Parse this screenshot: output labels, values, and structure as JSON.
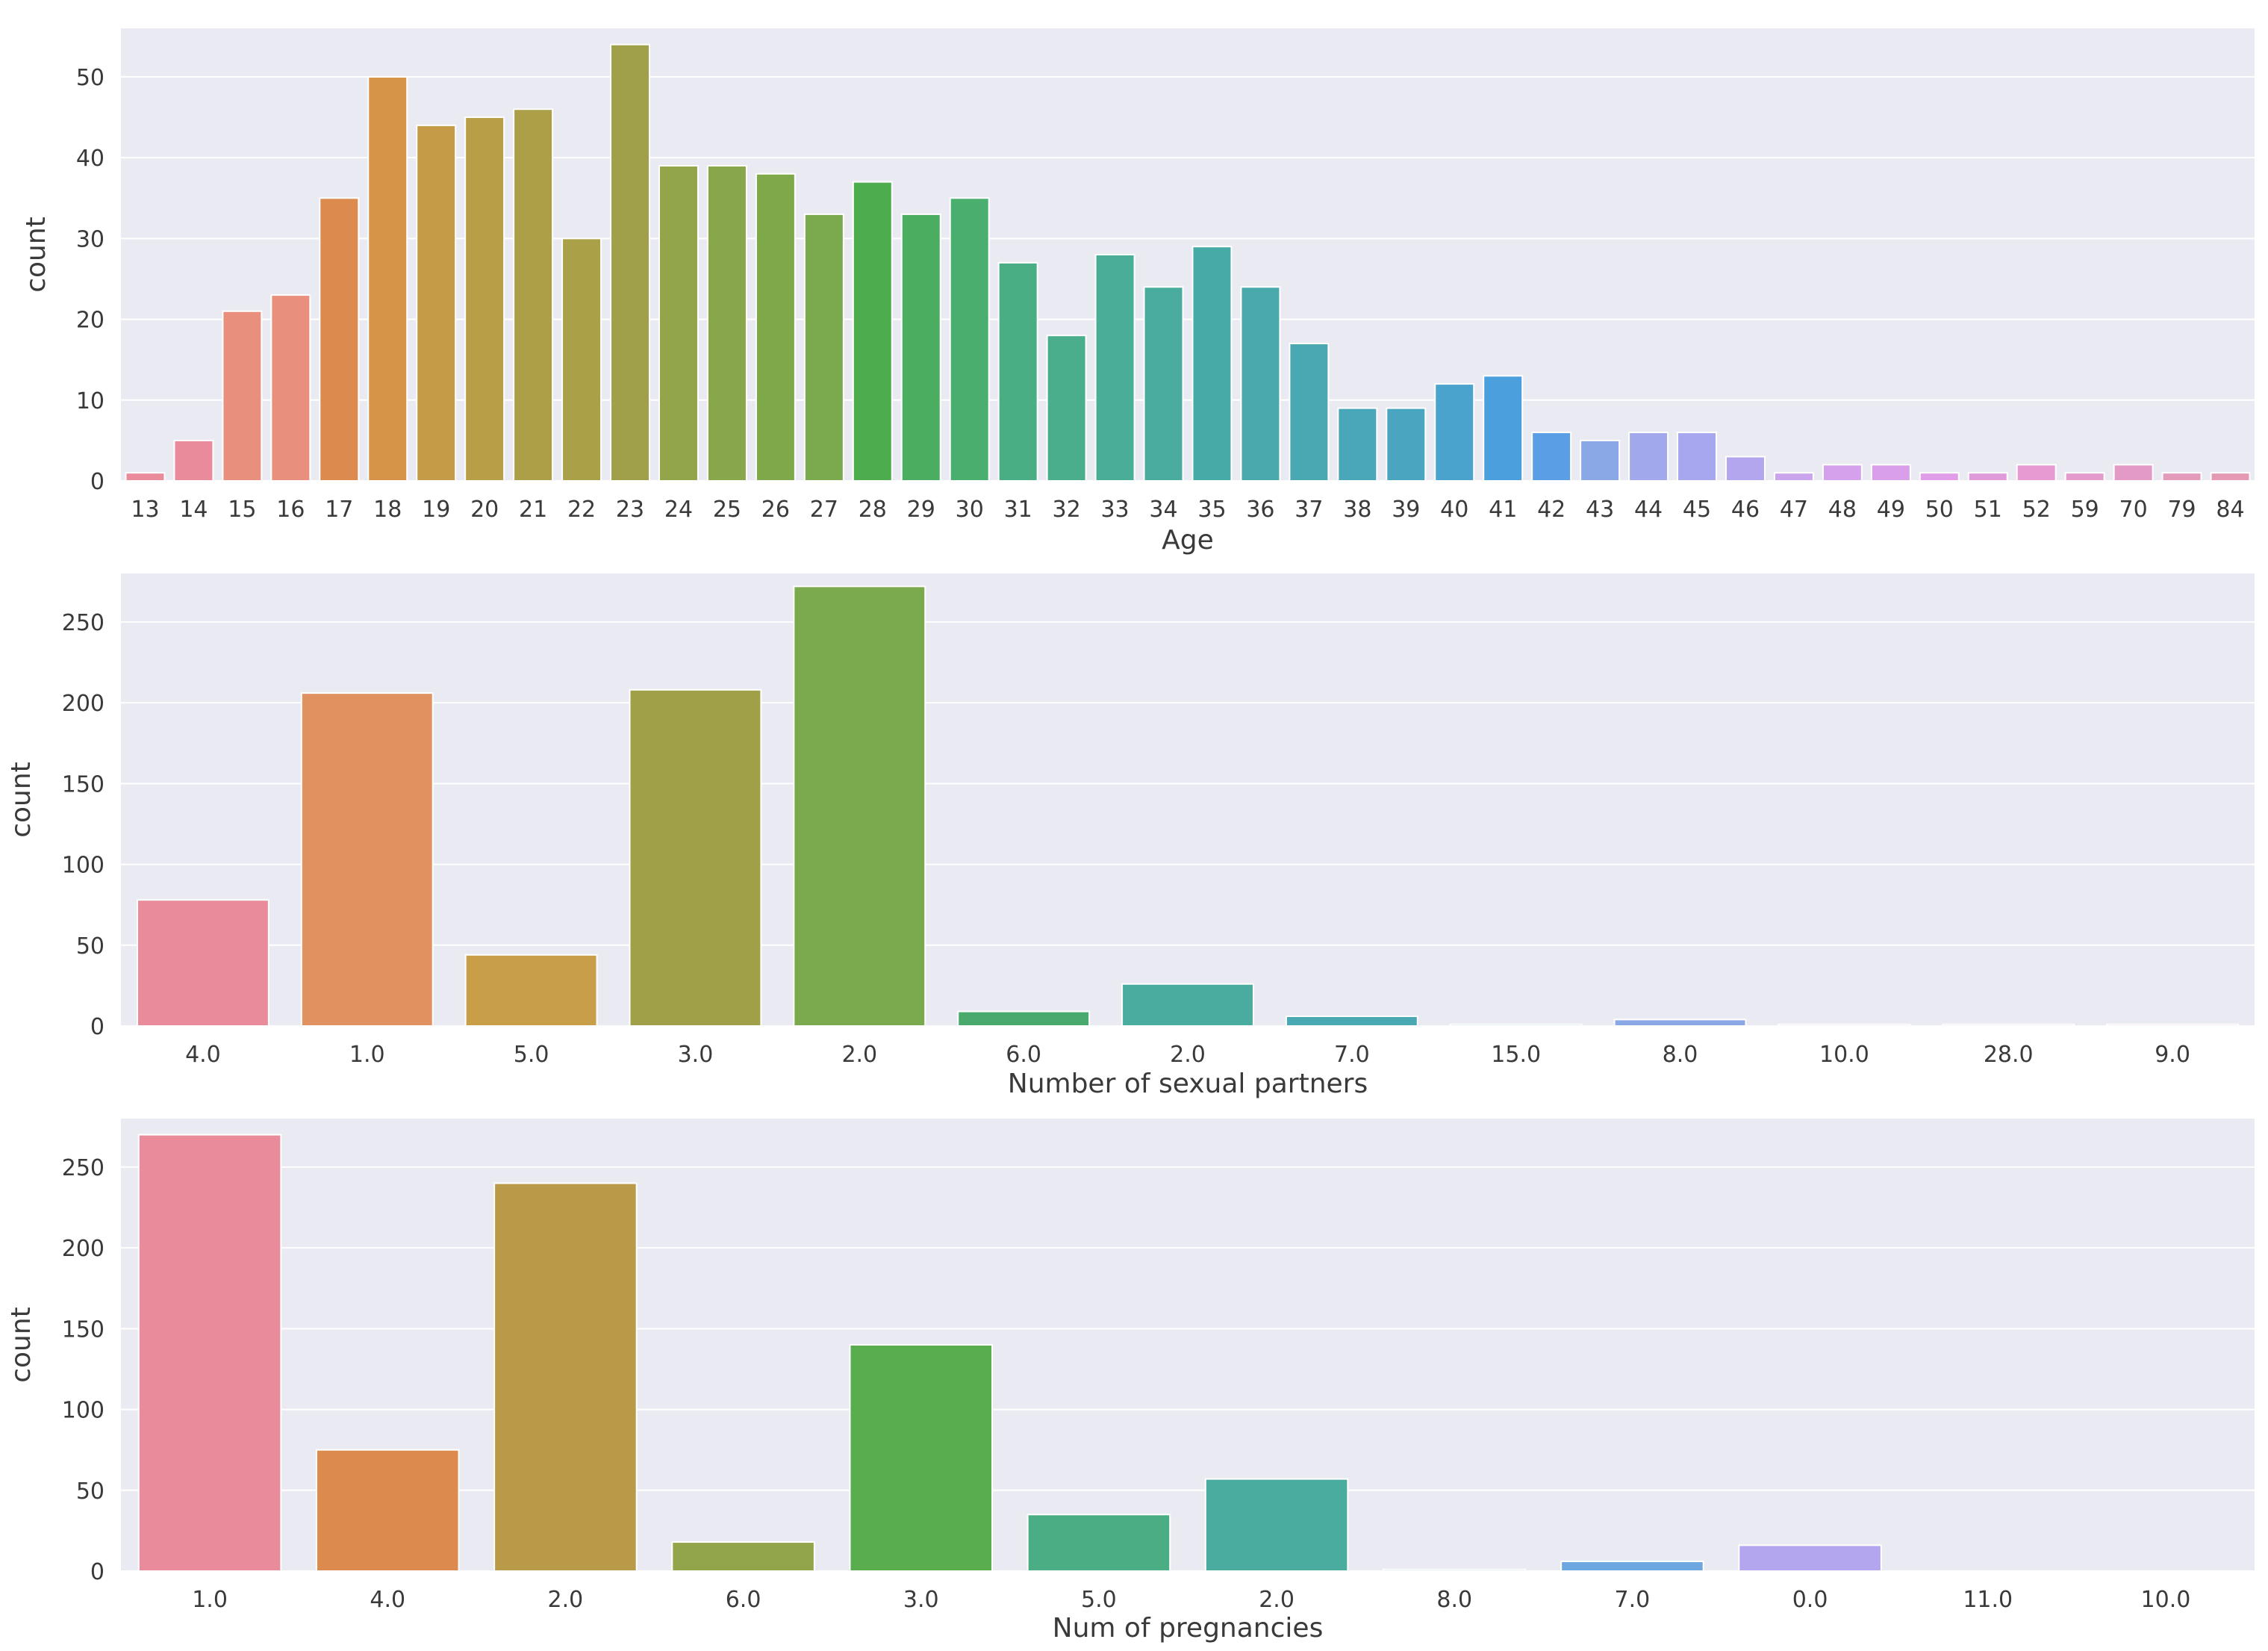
{
  "chart_data": [
    {
      "type": "bar",
      "xlabel": "Age",
      "ylabel": "count",
      "ylim": [
        0,
        56
      ],
      "yticks": [
        0,
        10,
        20,
        30,
        40,
        50
      ],
      "grid": true,
      "categories": [
        "13",
        "14",
        "15",
        "16",
        "17",
        "18",
        "19",
        "20",
        "21",
        "22",
        "23",
        "24",
        "25",
        "26",
        "27",
        "28",
        "29",
        "30",
        "31",
        "32",
        "33",
        "34",
        "35",
        "36",
        "37",
        "38",
        "39",
        "40",
        "41",
        "42",
        "43",
        "44",
        "45",
        "46",
        "47",
        "48",
        "49",
        "50",
        "51",
        "52",
        "59",
        "70",
        "79",
        "84"
      ],
      "values": [
        1,
        5,
        21,
        23,
        35,
        50,
        44,
        45,
        46,
        30,
        54,
        39,
        39,
        38,
        33,
        37,
        33,
        35,
        27,
        18,
        28,
        24,
        29,
        24,
        17,
        9,
        9,
        12,
        13,
        6,
        5,
        6,
        6,
        3,
        1,
        2,
        2,
        1,
        1,
        2,
        1,
        2,
        1,
        1
      ],
      "colors": [
        "#e98b9a",
        "#e98b9a",
        "#e8907d",
        "#e8907d",
        "#dd8a4f",
        "#d59448",
        "#c69b48",
        "#b99e48",
        "#ac9f48",
        "#a9a048",
        "#a0a04a",
        "#93a54a",
        "#88a64a",
        "#7fa84a",
        "#7aa94e",
        "#4cac4e",
        "#4aad5f",
        "#4aae6e",
        "#4aae84",
        "#4aae8c",
        "#4aad98",
        "#4aab9f",
        "#46aaa6",
        "#49a9ac",
        "#4aa8b2",
        "#4aa7b9",
        "#4aa5c0",
        "#4aa3cc",
        "#4a9fdc",
        "#5a9ee6",
        "#8aa7e6",
        "#a2a8ec",
        "#a6a7ee",
        "#b3a6ee",
        "#cba4ee",
        "#d5a1ed",
        "#d99fea",
        "#e29de8",
        "#e09ad9",
        "#e69ad1",
        "#e49acc",
        "#e49ac6",
        "#e49aba",
        "#e49ab2"
      ]
    },
    {
      "type": "bar",
      "xlabel": "Number of sexual partners",
      "ylabel": "count",
      "ylim": [
        0,
        280
      ],
      "yticks": [
        0,
        50,
        100,
        150,
        200,
        250
      ],
      "grid": true,
      "categories": [
        "4.0",
        "1.0",
        "5.0",
        "3.0",
        "2.0",
        "6.0",
        "2.0",
        "7.0",
        "15.0",
        "8.0",
        "10.0",
        "28.0",
        "9.0"
      ],
      "values": [
        78,
        206,
        44,
        208,
        272,
        9,
        26,
        6,
        1,
        4,
        1,
        1,
        1
      ],
      "colors": [
        "#e98b9a",
        "#e0915f",
        "#c89f48",
        "#a0a048",
        "#7aa94e",
        "#4aaa6e",
        "#4aab9f",
        "#4aa8b2",
        "#4aa7c0",
        "#8aa7e6",
        "#b3a6ee",
        "#d5a1ed",
        "#e49aba"
      ]
    },
    {
      "type": "bar",
      "xlabel": "Num of pregnancies",
      "ylabel": "count",
      "ylim": [
        0,
        280
      ],
      "yticks": [
        0,
        50,
        100,
        150,
        200,
        250
      ],
      "grid": true,
      "categories": [
        "1.0",
        "4.0",
        "2.0",
        "6.0",
        "3.0",
        "5.0",
        "2.0",
        "8.0",
        "7.0",
        "0.0",
        "11.0",
        "10.0"
      ],
      "values": [
        270,
        75,
        240,
        18,
        140,
        35,
        57,
        1,
        6,
        16,
        0,
        0
      ],
      "colors": [
        "#e98b9a",
        "#dd8a4f",
        "#b99a48",
        "#93a54a",
        "#5aad4e",
        "#4aad84",
        "#4aab9f",
        "#4aa7c0",
        "#6ea6e0",
        "#b3a6ee",
        "#d5a1ed",
        "#e49aba"
      ]
    }
  ],
  "style": {
    "axes_bg": "#eaeaf2",
    "grid_color": "#ffffff",
    "text_color": "#3a3a3a"
  }
}
